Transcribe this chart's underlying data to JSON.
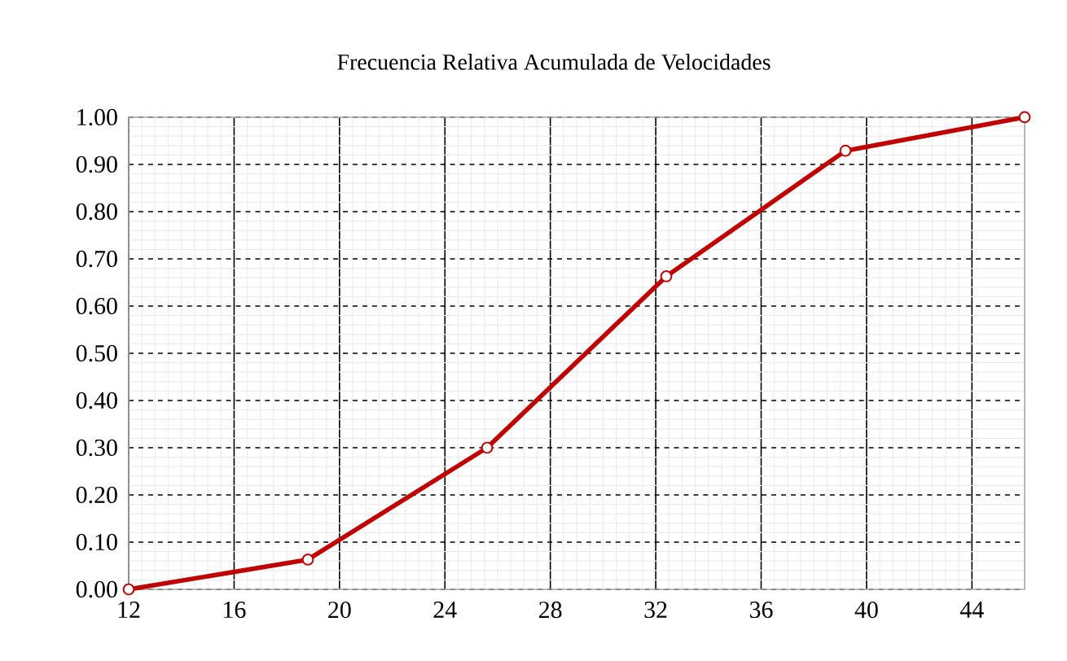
{
  "chart_data": {
    "type": "line",
    "title": "Frecuencia Relativa Acumulada de Velocidades",
    "x": [
      12,
      18.8,
      25.6,
      32.4,
      39.2,
      46
    ],
    "values": [
      0,
      0.063,
      0.3,
      0.663,
      0.929,
      1.0
    ],
    "color": "#c00000",
    "marker": "circle",
    "line_style": "solid",
    "grid": true,
    "xlim": [
      12,
      46
    ],
    "xticks": [
      12,
      16,
      20,
      24,
      28,
      32,
      36,
      40,
      44
    ],
    "ylim": [
      0,
      1
    ],
    "yticks": [
      {
        "value": 0,
        "label": "0.00"
      },
      {
        "value": 0.1,
        "label": "0.10"
      },
      {
        "value": 0.2,
        "label": "0.20"
      },
      {
        "value": 0.3,
        "label": "0.30"
      },
      {
        "value": 0.4,
        "label": "0.40"
      },
      {
        "value": 0.5,
        "label": "0.50"
      },
      {
        "value": 0.6,
        "label": "0.60"
      },
      {
        "value": 0.7,
        "label": "0.70"
      },
      {
        "value": 0.8,
        "label": "0.80"
      },
      {
        "value": 0.9,
        "label": "0.90"
      },
      {
        "value": 1,
        "label": "1.00"
      }
    ]
  }
}
